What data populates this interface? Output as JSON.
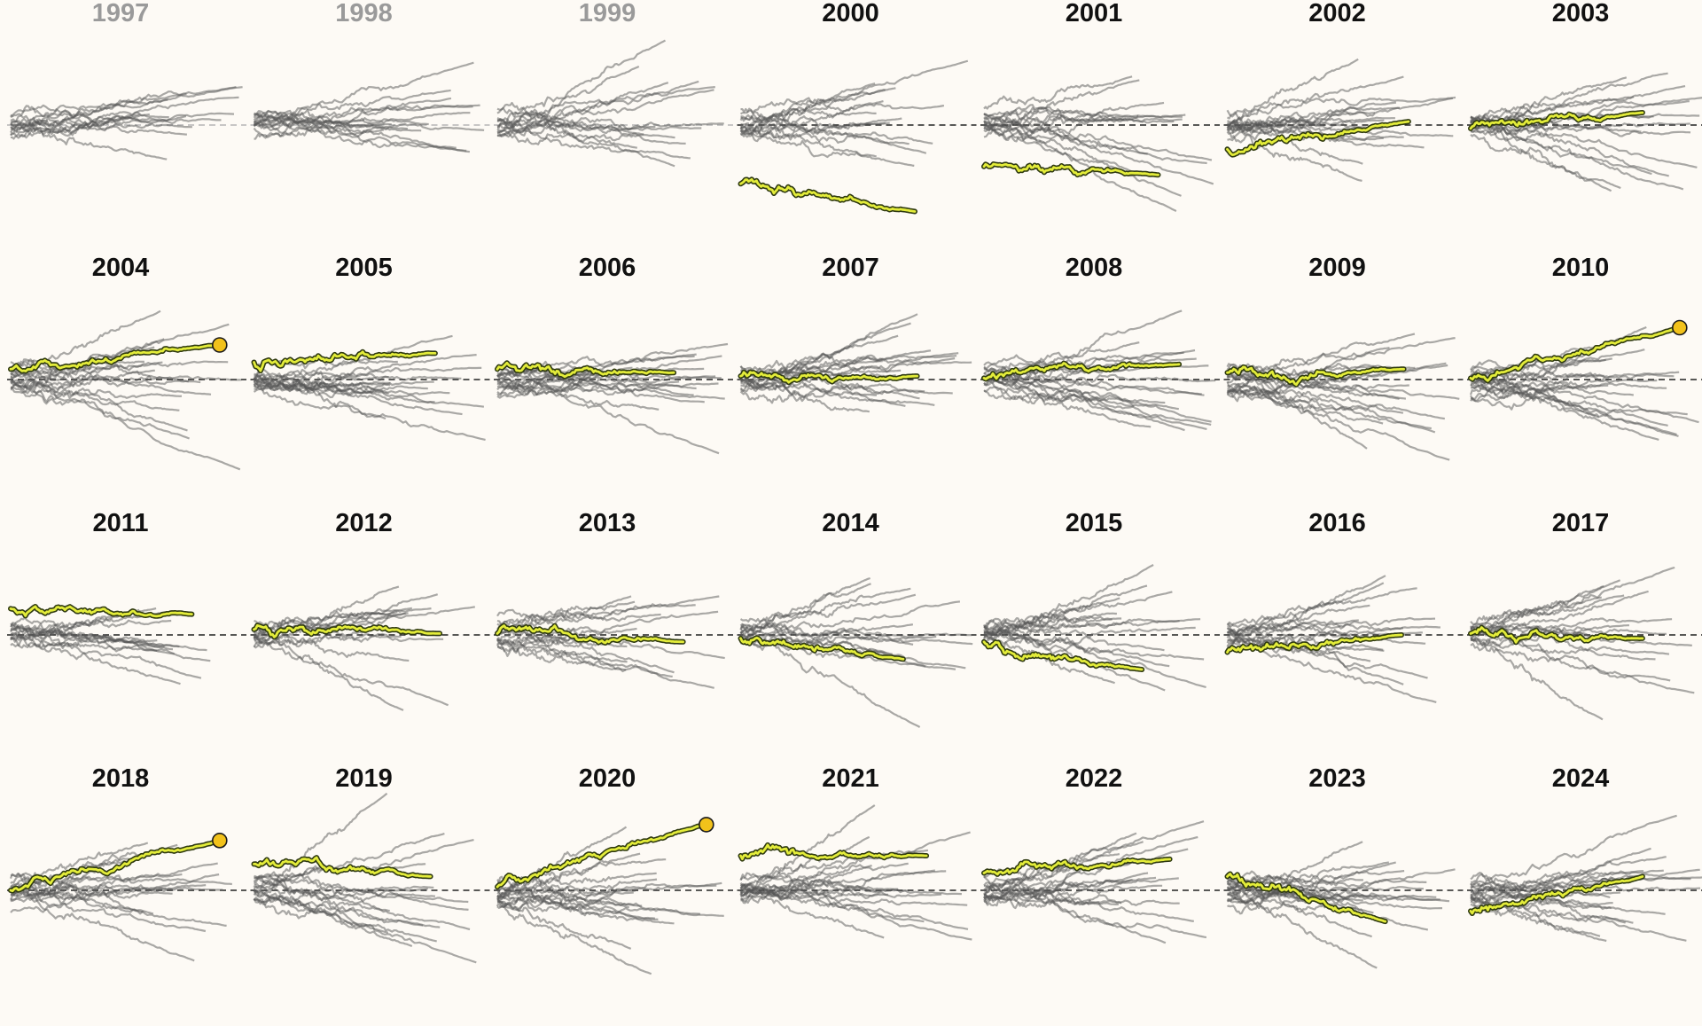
{
  "chart_data": {
    "type": "line",
    "layout": "small-multiples",
    "title": "",
    "xlabel": "",
    "ylabel": "",
    "zero_line": "dashed",
    "colors": {
      "background": "#fdfaf5",
      "trajectory": "#555555",
      "highlight_fill": "#e3ec3a",
      "highlight_outline": "#2f3a10",
      "endpoint_marker": "#f2c21b",
      "title_active": "#111111",
      "title_muted": "#9a9a9a",
      "zero_line": "#222222"
    },
    "panels": [
      {
        "year": "1997",
        "muted": true,
        "marker": false,
        "highlight": null
      },
      {
        "year": "1998",
        "muted": true,
        "marker": false,
        "highlight": null
      },
      {
        "year": "1999",
        "muted": true,
        "marker": false,
        "highlight": null
      },
      {
        "year": "2000",
        "muted": false,
        "marker": false,
        "highlight": {
          "start": -0.85,
          "end": -1.25,
          "length": 0.75
        }
      },
      {
        "year": "2001",
        "muted": false,
        "marker": false,
        "highlight": {
          "start": -0.6,
          "end": -0.72,
          "length": 0.75
        }
      },
      {
        "year": "2002",
        "muted": false,
        "marker": false,
        "highlight": {
          "start": -0.35,
          "end": 0.05,
          "length": 0.78
        }
      },
      {
        "year": "2003",
        "muted": false,
        "marker": false,
        "highlight": {
          "start": -0.05,
          "end": 0.18,
          "length": 0.74
        }
      },
      {
        "year": "2004",
        "muted": false,
        "marker": true,
        "highlight": {
          "start": 0.15,
          "end": 0.5,
          "length": 0.9
        }
      },
      {
        "year": "2005",
        "muted": false,
        "marker": false,
        "highlight": {
          "start": 0.25,
          "end": 0.38,
          "length": 0.78
        }
      },
      {
        "year": "2006",
        "muted": false,
        "marker": false,
        "highlight": {
          "start": 0.15,
          "end": 0.1,
          "length": 0.76
        }
      },
      {
        "year": "2007",
        "muted": false,
        "marker": false,
        "highlight": {
          "start": 0.05,
          "end": 0.05,
          "length": 0.76
        }
      },
      {
        "year": "2008",
        "muted": false,
        "marker": false,
        "highlight": {
          "start": 0.02,
          "end": 0.22,
          "length": 0.84
        }
      },
      {
        "year": "2009",
        "muted": false,
        "marker": false,
        "highlight": {
          "start": 0.1,
          "end": 0.15,
          "length": 0.76
        }
      },
      {
        "year": "2010",
        "muted": false,
        "marker": true,
        "highlight": {
          "start": 0.02,
          "end": 0.75,
          "length": 0.9
        }
      },
      {
        "year": "2011",
        "muted": false,
        "marker": false,
        "highlight": {
          "start": 0.38,
          "end": 0.3,
          "length": 0.78
        }
      },
      {
        "year": "2012",
        "muted": false,
        "marker": false,
        "highlight": {
          "start": 0.08,
          "end": 0.02,
          "length": 0.8
        }
      },
      {
        "year": "2013",
        "muted": false,
        "marker": false,
        "highlight": {
          "start": 0.02,
          "end": -0.1,
          "length": 0.8
        }
      },
      {
        "year": "2014",
        "muted": false,
        "marker": false,
        "highlight": {
          "start": -0.05,
          "end": -0.35,
          "length": 0.7
        }
      },
      {
        "year": "2015",
        "muted": false,
        "marker": false,
        "highlight": {
          "start": -0.1,
          "end": -0.5,
          "length": 0.68
        }
      },
      {
        "year": "2016",
        "muted": false,
        "marker": false,
        "highlight": {
          "start": -0.25,
          "end": 0.0,
          "length": 0.75
        }
      },
      {
        "year": "2017",
        "muted": false,
        "marker": false,
        "highlight": {
          "start": 0.02,
          "end": -0.05,
          "length": 0.74
        }
      },
      {
        "year": "2018",
        "muted": false,
        "marker": true,
        "highlight": {
          "start": 0.0,
          "end": 0.72,
          "length": 0.9
        }
      },
      {
        "year": "2019",
        "muted": false,
        "marker": false,
        "highlight": {
          "start": 0.38,
          "end": 0.2,
          "length": 0.76
        }
      },
      {
        "year": "2020",
        "muted": false,
        "marker": true,
        "highlight": {
          "start": 0.05,
          "end": 0.95,
          "length": 0.9
        }
      },
      {
        "year": "2021",
        "muted": false,
        "marker": false,
        "highlight": {
          "start": 0.5,
          "end": 0.5,
          "length": 0.8
        }
      },
      {
        "year": "2022",
        "muted": false,
        "marker": false,
        "highlight": {
          "start": 0.25,
          "end": 0.45,
          "length": 0.8
        }
      },
      {
        "year": "2023",
        "muted": false,
        "marker": false,
        "highlight": {
          "start": 0.2,
          "end": -0.45,
          "length": 0.68
        }
      },
      {
        "year": "2024",
        "muted": false,
        "marker": false,
        "highlight": {
          "start": -0.3,
          "end": 0.2,
          "length": 0.74
        }
      }
    ]
  }
}
